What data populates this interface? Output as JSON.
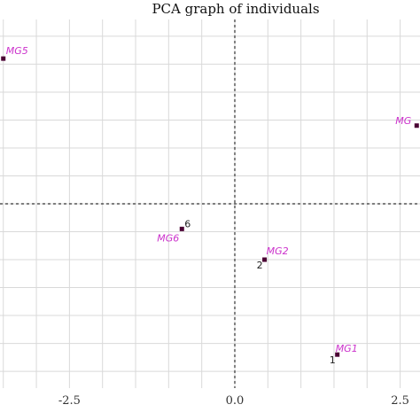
{
  "chart_data": {
    "type": "scatter",
    "title": "PCA graph of individuals",
    "xlabel": "",
    "ylabel": "",
    "x_ticks": [
      "-2.5",
      "0.0",
      "2.5"
    ],
    "xlim": [
      -3.55,
      2.8
    ],
    "ylim": [
      -3.3,
      3.3
    ],
    "grid": true,
    "origin_lines": "dashed",
    "colors": {
      "point": "#4a0033",
      "label": "#cc33cc",
      "grid": "#d9d9d9",
      "axis": "#333333"
    },
    "points": [
      {
        "name": "MG5",
        "x": -3.5,
        "y": 2.6,
        "id": ""
      },
      {
        "name": "MG",
        "x": 2.75,
        "y": 1.4,
        "id": ""
      },
      {
        "name": "MG6",
        "x": -0.8,
        "y": -0.45,
        "id": "6"
      },
      {
        "name": "MG2",
        "x": 0.45,
        "y": -1.0,
        "id": "2"
      },
      {
        "name": "MG1",
        "x": 1.55,
        "y": -2.7,
        "id": "1"
      }
    ]
  }
}
